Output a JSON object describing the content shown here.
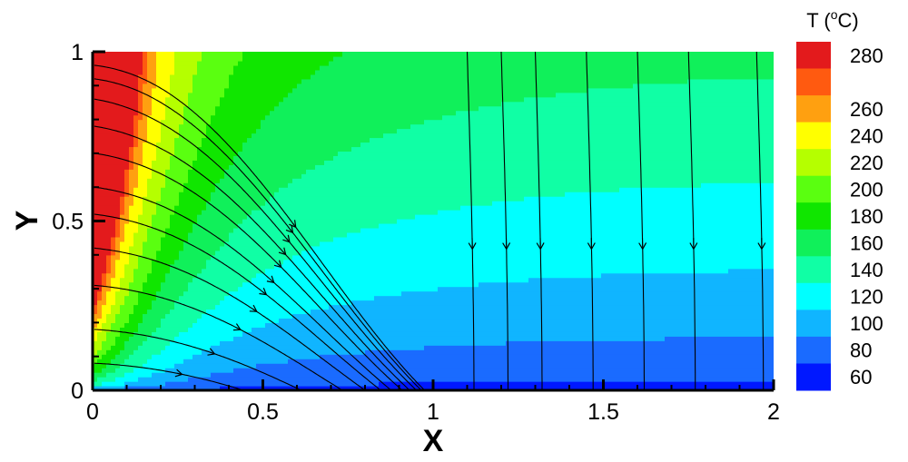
{
  "chart_data": {
    "type": "contour",
    "xlabel": "X",
    "ylabel": "Y",
    "xlim": [
      0,
      2
    ],
    "ylim": [
      0,
      1
    ],
    "x_ticks": [
      0,
      0.5,
      1,
      1.5,
      2
    ],
    "x_tick_labels": [
      "0",
      "0.5",
      "1",
      "1.5",
      "2"
    ],
    "y_ticks": [
      0,
      0.5,
      1
    ],
    "y_tick_labels": [
      "0",
      "0.5",
      "1"
    ],
    "colorbar": {
      "title": "T (°C)",
      "title_text": "T (",
      "title_sup": "o",
      "title_unit": "C)",
      "levels": [
        {
          "label": "280",
          "value": 280,
          "color": "#e31a1c"
        },
        {
          "label": "",
          "value": 270,
          "color": "#ff5a10"
        },
        {
          "label": "260",
          "value": 260,
          "color": "#ffa010"
        },
        {
          "label": "240",
          "value": 240,
          "color": "#ffff00"
        },
        {
          "label": "220",
          "value": 220,
          "color": "#b5ff00"
        },
        {
          "label": "200",
          "value": 200,
          "color": "#5aff10"
        },
        {
          "label": "180",
          "value": 180,
          "color": "#10e600"
        },
        {
          "label": "160",
          "value": 160,
          "color": "#10f05a"
        },
        {
          "label": "140",
          "value": 140,
          "color": "#10ffa5"
        },
        {
          "label": "120",
          "value": 120,
          "color": "#00ffff"
        },
        {
          "label": "100",
          "value": 100,
          "color": "#10b5ff"
        },
        {
          "label": "80",
          "value": 80,
          "color": "#1a6bff"
        },
        {
          "label": "60",
          "value": 60,
          "color": "#0018ff"
        }
      ]
    },
    "field": {
      "hot_wall": "x=0",
      "max_value": 288,
      "min_value": 55
    },
    "streamline_seeds_left": [
      0.96,
      0.92,
      0.86,
      0.78,
      0.7,
      0.6,
      0.52,
      0.42,
      0.31,
      0.18,
      0.08
    ],
    "streamline_seeds_top": [
      1.1,
      1.2,
      1.3,
      1.45,
      1.6,
      1.75,
      1.95
    ]
  }
}
